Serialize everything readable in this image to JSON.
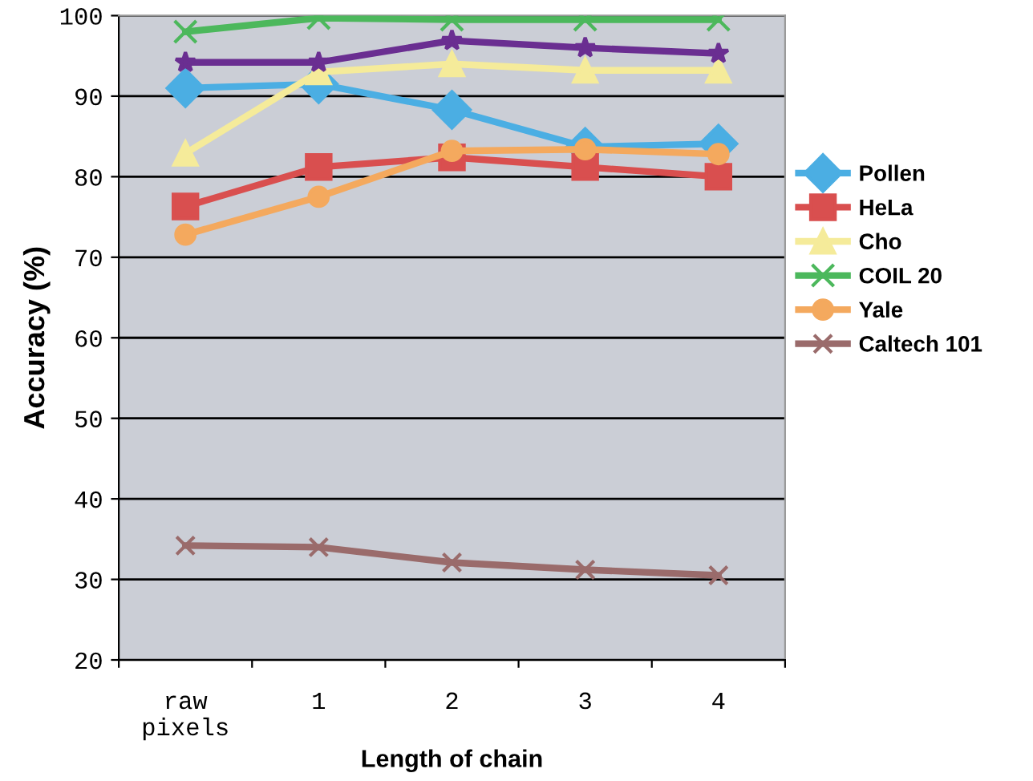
{
  "chart_data": {
    "type": "line",
    "xlabel": "Length of chain",
    "ylabel": "Accuracy (%)",
    "categories": [
      "raw\npixels",
      "1",
      "2",
      "3",
      "4"
    ],
    "series": [
      {
        "name": "Pollen",
        "color": "#4baee3",
        "marker": "diamond",
        "values": [
          91,
          91.5,
          88.3,
          83.7,
          84.1
        ]
      },
      {
        "name": "HeLa",
        "color": "#d94f4f",
        "marker": "square",
        "values": [
          76.3,
          81.2,
          82.4,
          81.2,
          80
        ]
      },
      {
        "name": "Cho",
        "color": "#f5eb9a",
        "marker": "triangle",
        "values": [
          82.9,
          93,
          94,
          93.2,
          93.2
        ]
      },
      {
        "name": "COIL 20",
        "color": "#4cb85c",
        "marker": "cross",
        "values": [
          98,
          99.7,
          99.5,
          99.5,
          99.5
        ]
      },
      {
        "color": "#6a2e91",
        "marker": "star",
        "values": [
          94.2,
          94.2,
          96.9,
          96.0,
          95.3
        ]
      },
      {
        "name": "Yale",
        "color": "#f4a95e",
        "marker": "circle",
        "values": [
          72.8,
          77.5,
          83.2,
          83.4,
          82.8
        ]
      },
      {
        "name": "Caltech 101",
        "color": "#9a6b6b",
        "marker": "cross",
        "values": [
          34.2,
          34,
          32.1,
          31.2,
          30.5
        ]
      }
    ],
    "ylim": [
      20,
      100
    ],
    "yticks": [
      20,
      30,
      40,
      50,
      60,
      70,
      80,
      90,
      100
    ],
    "grid": "y",
    "legend": "right",
    "line_style": "solid"
  }
}
